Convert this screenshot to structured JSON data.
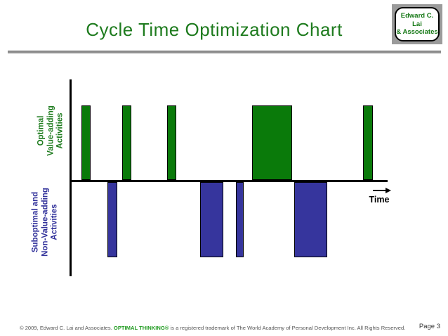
{
  "header": {
    "title": "Cycle Time Optimization Chart",
    "logo": {
      "line1": "Edward C. Lai",
      "line2": "& Associates"
    }
  },
  "chart_data": {
    "type": "bar",
    "title": "Cycle Time Optimization Chart",
    "xlabel": "Time",
    "ylabel": "",
    "x_axis": {
      "range": [
        0,
        100
      ],
      "unit": "relative time (no tick labels shown)",
      "grid": false
    },
    "y_axis": {
      "up_label": "Optimal\nValue-adding\nActivities",
      "down_label": "Suboptimal and\nNon-Value-adding\nActivities"
    },
    "legend": "none",
    "series": [
      {
        "name": "Optimal Value-adding Activities",
        "direction": "up",
        "color": "#0a7a0a",
        "value": 1,
        "bars": [
          {
            "start": 3.5,
            "duration": 3.0
          },
          {
            "start": 16.4,
            "duration": 2.9
          },
          {
            "start": 30.6,
            "duration": 2.8
          },
          {
            "start": 57.2,
            "duration": 12.8
          },
          {
            "start": 92.3,
            "duration": 3.1
          }
        ]
      },
      {
        "name": "Suboptimal and Non-Value-adding Activities",
        "direction": "down",
        "color": "#36359d",
        "value": -1,
        "bars": [
          {
            "start": 11.8,
            "duration": 3.0
          },
          {
            "start": 40.9,
            "duration": 7.4
          },
          {
            "start": 52.2,
            "duration": 2.5
          },
          {
            "start": 70.5,
            "duration": 10.4
          }
        ]
      }
    ]
  },
  "footer": {
    "copyright_prefix": "© 2009, Edward C. Lai and Associates. ",
    "brand": "OPTIMAL THINKING®",
    "copyright_suffix": " is a registered trademark of The World Academy of Personal Development Inc. All Rights Reserved.",
    "page": "Page 3"
  },
  "colors": {
    "title_green": "#1e7b1e",
    "bar_green": "#0a7a0a",
    "bar_blue": "#36359d",
    "label_blue": "#32329b",
    "logo_gray": "#9b9b9b",
    "footer_gray": "#555555"
  }
}
